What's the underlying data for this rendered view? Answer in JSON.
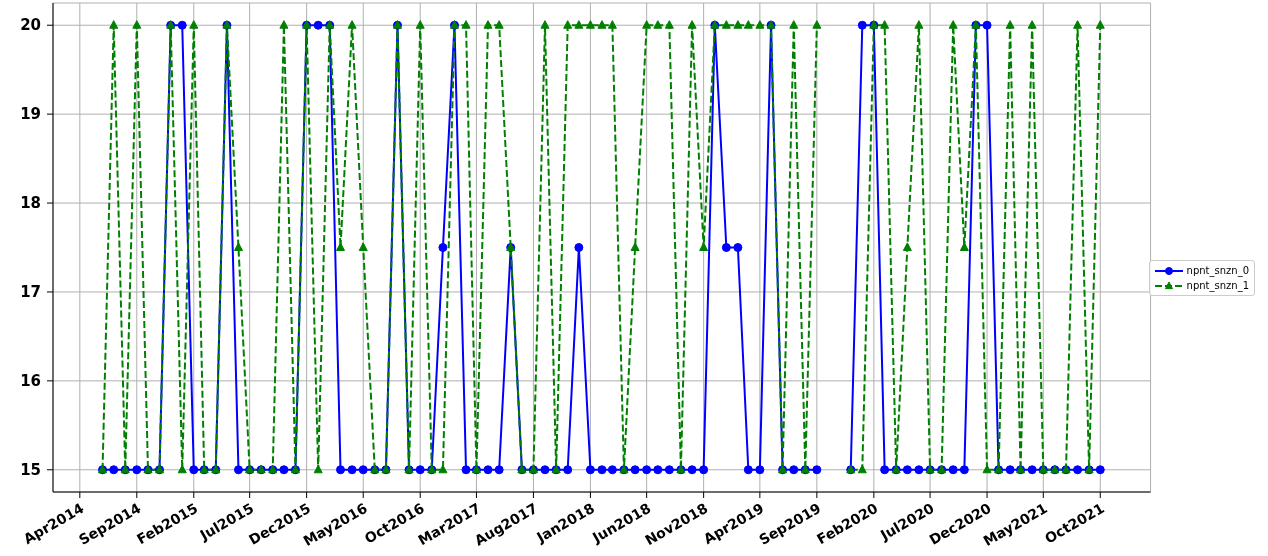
{
  "chart_data": {
    "type": "line",
    "x": [
      "2014-06",
      "2014-07",
      "2014-08",
      "2014-09",
      "2014-10",
      "2014-11",
      "2014-12",
      "2015-01",
      "2015-02",
      "2015-03",
      "2015-04",
      "2015-05",
      "2015-06",
      "2015-07",
      "2015-08",
      "2015-09",
      "2015-10",
      "2015-11",
      "2015-12",
      "2016-01",
      "2016-02",
      "2016-03",
      "2016-04",
      "2016-05",
      "2016-06",
      "2016-07",
      "2016-08",
      "2016-09",
      "2016-10",
      "2016-11",
      "2016-12",
      "2017-01",
      "2017-02",
      "2017-03",
      "2017-04",
      "2017-05",
      "2017-06",
      "2017-07",
      "2017-08",
      "2017-09",
      "2017-10",
      "2017-11",
      "2017-12",
      "2018-01",
      "2018-02",
      "2018-03",
      "2018-04",
      "2018-05",
      "2018-06",
      "2018-07",
      "2018-08",
      "2018-09",
      "2018-10",
      "2018-11",
      "2018-12",
      "2019-01",
      "2019-02",
      "2019-03",
      "2019-04",
      "2019-05",
      "2019-06",
      "2019-07",
      "2019-08",
      "2019-09",
      "2019-10",
      "2019-11",
      "2019-12",
      "2020-01",
      "2020-02",
      "2020-03",
      "2020-04",
      "2020-05",
      "2020-06",
      "2020-07",
      "2020-08",
      "2020-09",
      "2020-10",
      "2020-11",
      "2020-12",
      "2021-01",
      "2021-02",
      "2021-03",
      "2021-04",
      "2021-05",
      "2021-06",
      "2021-07",
      "2021-08",
      "2021-09",
      "2021-10"
    ],
    "series": [
      {
        "name": "npnt_snzn_0",
        "color": "#0000ff",
        "marker": "circle",
        "line_style": "solid",
        "values": [
          15,
          15,
          15,
          15,
          15,
          15,
          20,
          20,
          15,
          15,
          15,
          20,
          15,
          15,
          15,
          15,
          15,
          15,
          20,
          20,
          20,
          15,
          15,
          15,
          15,
          15,
          20,
          15,
          15,
          15,
          17.5,
          20,
          15,
          15,
          15,
          15,
          17.5,
          15,
          15,
          15,
          15,
          15,
          17.5,
          15,
          15,
          15,
          15,
          15,
          15,
          15,
          15,
          15,
          15,
          15,
          20,
          17.5,
          17.5,
          15,
          15,
          20,
          15,
          15,
          15,
          15,
          null,
          null,
          15,
          20,
          20,
          15,
          15,
          15,
          15,
          15,
          15,
          15,
          15,
          20,
          20,
          15,
          15,
          15,
          15,
          15,
          15,
          15,
          15,
          15,
          15
        ]
      },
      {
        "name": "npnt_snzn_1",
        "color": "#008000",
        "marker": "triangle",
        "line_style": "dashed",
        "values": [
          15,
          20,
          15,
          20,
          15,
          15,
          20,
          15,
          20,
          15,
          15,
          20,
          17.5,
          15,
          15,
          15,
          20,
          15,
          20,
          15,
          20,
          17.5,
          20,
          17.5,
          15,
          15,
          20,
          15,
          20,
          15,
          15,
          20,
          20,
          15,
          20,
          20,
          17.5,
          15,
          15,
          20,
          15,
          20,
          20,
          20,
          20,
          20,
          15,
          17.5,
          20,
          20,
          20,
          15,
          20,
          17.5,
          20,
          20,
          20,
          20,
          20,
          20,
          15,
          20,
          15,
          20,
          null,
          null,
          15,
          15,
          20,
          20,
          15,
          17.5,
          20,
          15,
          15,
          20,
          17.5,
          20,
          15,
          15,
          20,
          15,
          20,
          15,
          15,
          15,
          20,
          15,
          20
        ]
      }
    ],
    "xlim": [
      "2014-01-19",
      "2022-02-13"
    ],
    "xticks": [
      {
        "value": "2014-04",
        "label": "Apr2014"
      },
      {
        "value": "2014-09",
        "label": "Sep2014"
      },
      {
        "value": "2015-02",
        "label": "Feb2015"
      },
      {
        "value": "2015-07",
        "label": "Jul2015"
      },
      {
        "value": "2015-12",
        "label": "Dec2015"
      },
      {
        "value": "2016-05",
        "label": "May2016"
      },
      {
        "value": "2016-10",
        "label": "Oct2016"
      },
      {
        "value": "2017-03",
        "label": "Mar2017"
      },
      {
        "value": "2017-08",
        "label": "Aug2017"
      },
      {
        "value": "2018-01",
        "label": "Jan2018"
      },
      {
        "value": "2018-06",
        "label": "Jun2018"
      },
      {
        "value": "2018-11",
        "label": "Nov2018"
      },
      {
        "value": "2019-04",
        "label": "Apr2019"
      },
      {
        "value": "2019-09",
        "label": "Sep2019"
      },
      {
        "value": "2020-02",
        "label": "Feb2020"
      },
      {
        "value": "2020-07",
        "label": "Jul2020"
      },
      {
        "value": "2020-12",
        "label": "Dec2020"
      },
      {
        "value": "2021-05",
        "label": "May2021"
      },
      {
        "value": "2021-10",
        "label": "Oct2021"
      }
    ],
    "ylim": [
      14.75,
      20.25
    ],
    "yticks": [
      15,
      16,
      17,
      18,
      19,
      20
    ],
    "grid": true,
    "legend": "center right"
  }
}
